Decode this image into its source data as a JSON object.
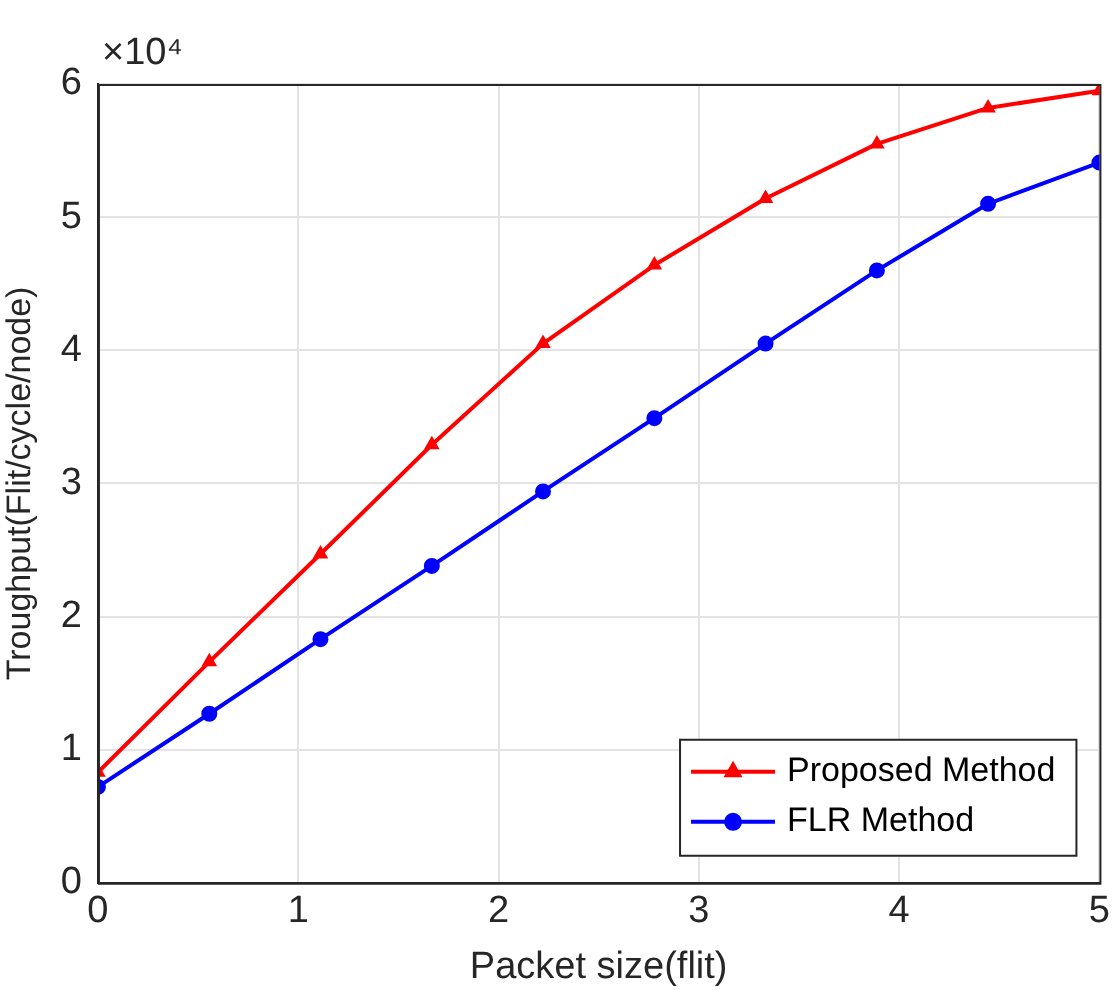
{
  "chart_data": {
    "type": "line",
    "xlabel": "Packet size(flit)",
    "ylabel": "Troughput(Flit/cycle/node)",
    "annotations": [
      "×10⁴"
    ],
    "xlim": [
      0,
      5
    ],
    "xticks": [
      0,
      1,
      2,
      3,
      4,
      5
    ],
    "ylim": [
      0,
      6
    ],
    "yticks": [
      0,
      1,
      2,
      3,
      4,
      5,
      6
    ],
    "grid": true,
    "legend": "bottom right",
    "line_style": "solid",
    "series": [
      {
        "name": "Proposed Method",
        "color": "#ff0000",
        "marker": "triangle",
        "x": [
          0,
          0.556,
          1.111,
          1.667,
          2.222,
          2.778,
          3.333,
          3.889,
          4.444,
          5
        ],
        "values": [
          0.83,
          1.66,
          2.47,
          3.29,
          4.05,
          4.64,
          5.14,
          5.55,
          5.82,
          5.95
        ]
      },
      {
        "name": "FLR Method",
        "color": "#0000ff",
        "marker": "circle",
        "x": [
          0,
          0.556,
          1.111,
          1.667,
          2.222,
          2.778,
          3.333,
          3.889,
          4.444,
          5
        ],
        "values": [
          0.72,
          1.27,
          1.83,
          2.38,
          2.94,
          3.49,
          4.05,
          4.6,
          5.1,
          5.41
        ]
      }
    ]
  }
}
